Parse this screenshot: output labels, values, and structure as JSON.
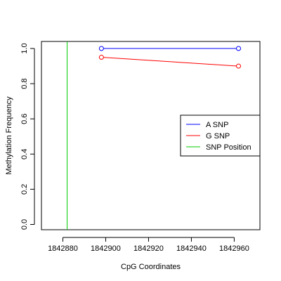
{
  "chart_data": {
    "type": "line",
    "title": "",
    "xlabel": "CpG Coordinates",
    "ylabel": "Methylation Frequency",
    "xlim": [
      1842870,
      1842972
    ],
    "ylim": [
      -0.03,
      1.04
    ],
    "x_ticks": [
      1842880,
      1842900,
      1842920,
      1842940,
      1842960
    ],
    "y_ticks": [
      0.0,
      0.2,
      0.4,
      0.6,
      0.8,
      1.0
    ],
    "x_tick_labels": [
      "1842880",
      "1842900",
      "1842920",
      "1842940",
      "1842960"
    ],
    "y_tick_labels": [
      "0.0",
      "0.2",
      "0.4",
      "0.6",
      "0.8",
      "1.0"
    ],
    "series": [
      {
        "name": "A SNP",
        "color": "#0000ff",
        "x": [
          1842898,
          1842962
        ],
        "y": [
          1.0,
          1.0
        ]
      },
      {
        "name": "G SNP",
        "color": "#ff0000",
        "x": [
          1842898,
          1842962
        ],
        "y": [
          0.95,
          0.9
        ]
      }
    ],
    "snp_position": {
      "name": "SNP Position",
      "color": "#00cc00",
      "x": 1842882
    },
    "legend": {
      "placement": "right",
      "entries": [
        {
          "label": "A SNP",
          "color": "#0000ff"
        },
        {
          "label": "G SNP",
          "color": "#ff0000"
        },
        {
          "label": "SNP Position",
          "color": "#00cc00"
        }
      ]
    },
    "grid": false
  }
}
